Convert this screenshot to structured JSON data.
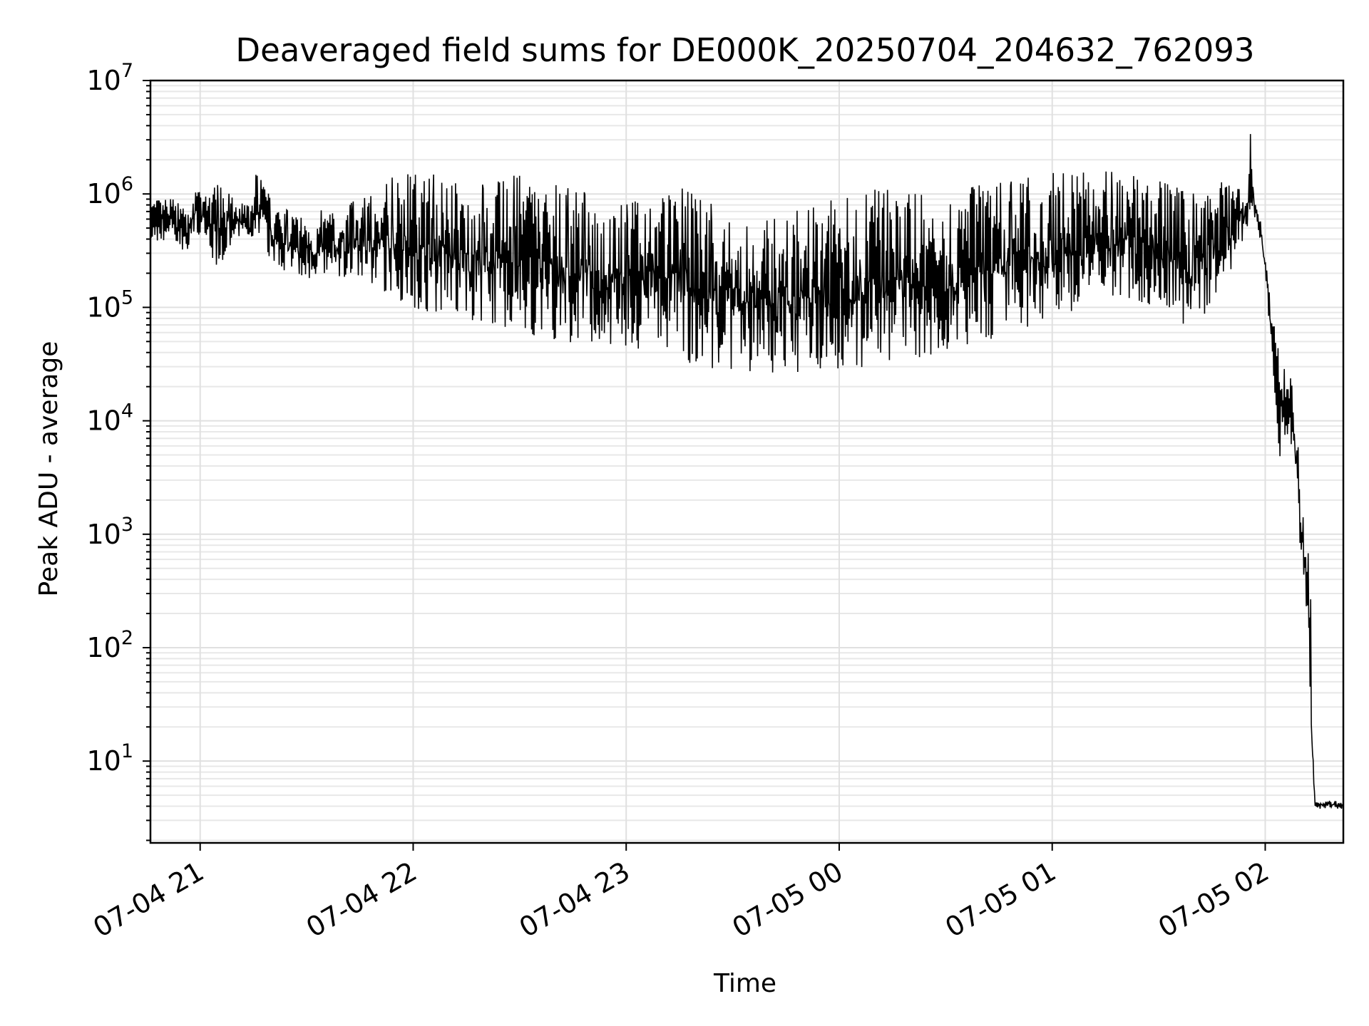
{
  "chart_data": {
    "type": "line",
    "title": "Deaveraged field sums for DE000K_20250704_204632_762093",
    "xlabel": "Time",
    "ylabel": "Peak ADU - average",
    "yscale": "log",
    "ylim": [
      1.9,
      10000000
    ],
    "xlim": [
      "2025-07-04 20:46",
      "2025-07-05 02:22"
    ],
    "grid": true,
    "x_ticks": [
      {
        "t": "2025-07-04 21:00",
        "label": "07-04 21"
      },
      {
        "t": "2025-07-04 22:00",
        "label": "07-04 22"
      },
      {
        "t": "2025-07-04 23:00",
        "label": "07-04 23"
      },
      {
        "t": "2025-07-05 00:00",
        "label": "07-05 00"
      },
      {
        "t": "2025-07-05 01:00",
        "label": "07-05 01"
      },
      {
        "t": "2025-07-05 02:00",
        "label": "07-05 02"
      }
    ],
    "y_ticks": [
      {
        "value": 10,
        "base": "10",
        "exp": "1"
      },
      {
        "value": 100,
        "base": "10",
        "exp": "2"
      },
      {
        "value": 1000,
        "base": "10",
        "exp": "3"
      },
      {
        "value": 10000,
        "base": "10",
        "exp": "4"
      },
      {
        "value": 100000,
        "base": "10",
        "exp": "5"
      },
      {
        "value": 1000000,
        "base": "10",
        "exp": "6"
      },
      {
        "value": 10000000,
        "base": "10",
        "exp": "7"
      }
    ],
    "series": [
      {
        "color": "#000000",
        "x": [
          "2025-07-04 20:46",
          "2025-07-04 20:52",
          "2025-07-04 20:56",
          "2025-07-04 20:58",
          "2025-07-04 21:05",
          "2025-07-04 21:10",
          "2025-07-04 21:15",
          "2025-07-04 21:16",
          "2025-07-04 21:20",
          "2025-07-04 21:25",
          "2025-07-04 21:30",
          "2025-07-04 21:40",
          "2025-07-04 21:50",
          "2025-07-04 21:55",
          "2025-07-04 22:00",
          "2025-07-04 22:10",
          "2025-07-04 22:20",
          "2025-07-04 22:30",
          "2025-07-04 22:40",
          "2025-07-04 22:50",
          "2025-07-04 23:00",
          "2025-07-04 23:10",
          "2025-07-04 23:20",
          "2025-07-04 23:30",
          "2025-07-04 23:40",
          "2025-07-04 23:50",
          "2025-07-05 00:00",
          "2025-07-05 00:10",
          "2025-07-05 00:20",
          "2025-07-05 00:30",
          "2025-07-05 00:40",
          "2025-07-05 00:50",
          "2025-07-05 01:00",
          "2025-07-05 01:10",
          "2025-07-05 01:20",
          "2025-07-05 01:30",
          "2025-07-05 01:40",
          "2025-07-05 01:50",
          "2025-07-05 01:55",
          "2025-07-05 01:56",
          "2025-07-05 01:57",
          "2025-07-05 01:58",
          "2025-07-05 02:00",
          "2025-07-05 02:02",
          "2025-07-05 02:04",
          "2025-07-05 02:06",
          "2025-07-05 02:08",
          "2025-07-05 02:10",
          "2025-07-05 02:12",
          "2025-07-05 02:13",
          "2025-07-05 02:14",
          "2025-07-05 02:22"
        ],
        "high": [
          900000,
          950000,
          700000,
          1100000,
          1200000,
          900000,
          800000,
          2000000,
          900000,
          700000,
          700000,
          800000,
          1000000,
          1500000,
          1600000,
          1400000,
          1200000,
          1500000,
          1200000,
          1000000,
          800000,
          1300000,
          1000000,
          600000,
          600000,
          800000,
          900000,
          1300000,
          1000000,
          1000000,
          1200000,
          1300000,
          1600000,
          1700000,
          1500000,
          1300000,
          1000000,
          1400000,
          1000000,
          5000000,
          900000,
          800000,
          300000,
          80000,
          60000,
          50000,
          20000,
          3000,
          1000,
          400,
          4.5,
          4.5
        ],
        "low": [
          350000,
          400000,
          300000,
          450000,
          220000,
          350000,
          400000,
          400000,
          250000,
          200000,
          150000,
          180000,
          150000,
          120000,
          100000,
          80000,
          70000,
          60000,
          50000,
          45000,
          45000,
          40000,
          30000,
          28000,
          26000,
          26000,
          28000,
          30000,
          35000,
          40000,
          45000,
          60000,
          80000,
          100000,
          120000,
          100000,
          60000,
          200000,
          500000,
          700000,
          600000,
          500000,
          200000,
          30000,
          3000,
          8000,
          3000,
          700,
          150,
          3.8,
          3.8,
          3.8
        ]
      }
    ]
  }
}
